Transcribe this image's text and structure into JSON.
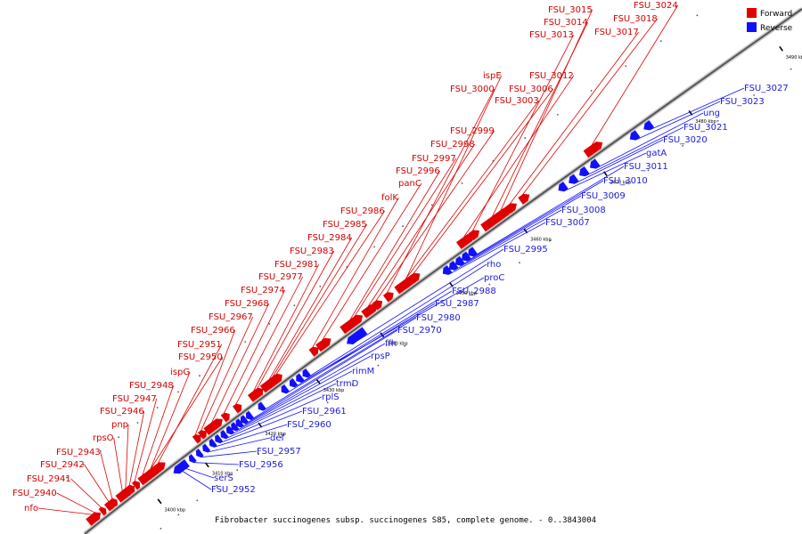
{
  "caption": "Fibrobacter succinogenes subsp. succinogenes S85, complete genome. - 0..3843004",
  "legend": {
    "forward_label": "Forward",
    "reverse_label": "Reverse",
    "forward_color": "#e00000",
    "reverse_color": "#1010ff"
  },
  "scale_labels": [
    "3400 kbp",
    "3410 kbp",
    "3420 kbp",
    "3430 kbp",
    "3440 kbp",
    "3450 kbp",
    "3460 kbp",
    "3470 kbp",
    "3480 kbp",
    "3490 kbp"
  ],
  "forward_genes": [
    "nfo",
    "FSU_2940",
    "FSU_2941",
    "FSU_2942",
    "FSU_2943",
    "rpsO",
    "pnp",
    "FSU_2946",
    "FSU_2947",
    "FSU_2948",
    "ispG",
    "FSU_2950",
    "FSU_2951",
    "FSU_2966",
    "FSU_2967",
    "FSU_2968",
    "FSU_2974",
    "FSU_2977",
    "FSU_2981",
    "FSU_2983",
    "FSU_2984",
    "FSU_2985",
    "FSU_2986",
    "folK",
    "panC",
    "FSU_2996",
    "FSU_2997",
    "FSU_2998",
    "FSU_2999",
    "FSU_3000",
    "FSU_3003",
    "ispE",
    "FSU_3006",
    "FSU_3012",
    "FSU_3013",
    "FSU_3014",
    "FSU_3015",
    "FSU_3017",
    "FSU_3018",
    "FSU_3024"
  ],
  "reverse_genes": [
    "FSU_2952",
    "serS",
    "FSU_2956",
    "FSU_2957",
    "def",
    "FSU_2960",
    "FSU_2961",
    "rplS",
    "trmD",
    "rimM",
    "rpsP",
    "ffh",
    "FSU_2970",
    "FSU_2980",
    "FSU_2987",
    "FSU_2988",
    "proC",
    "rho",
    "FSU_2995",
    "FSU_3007",
    "FSU_3008",
    "FSU_3009",
    "FSU_3010",
    "FSU_3011",
    "gatA",
    "FSU_3020",
    "FSU_3021",
    "ung",
    "FSU_3023",
    "FSU_3027"
  ]
}
